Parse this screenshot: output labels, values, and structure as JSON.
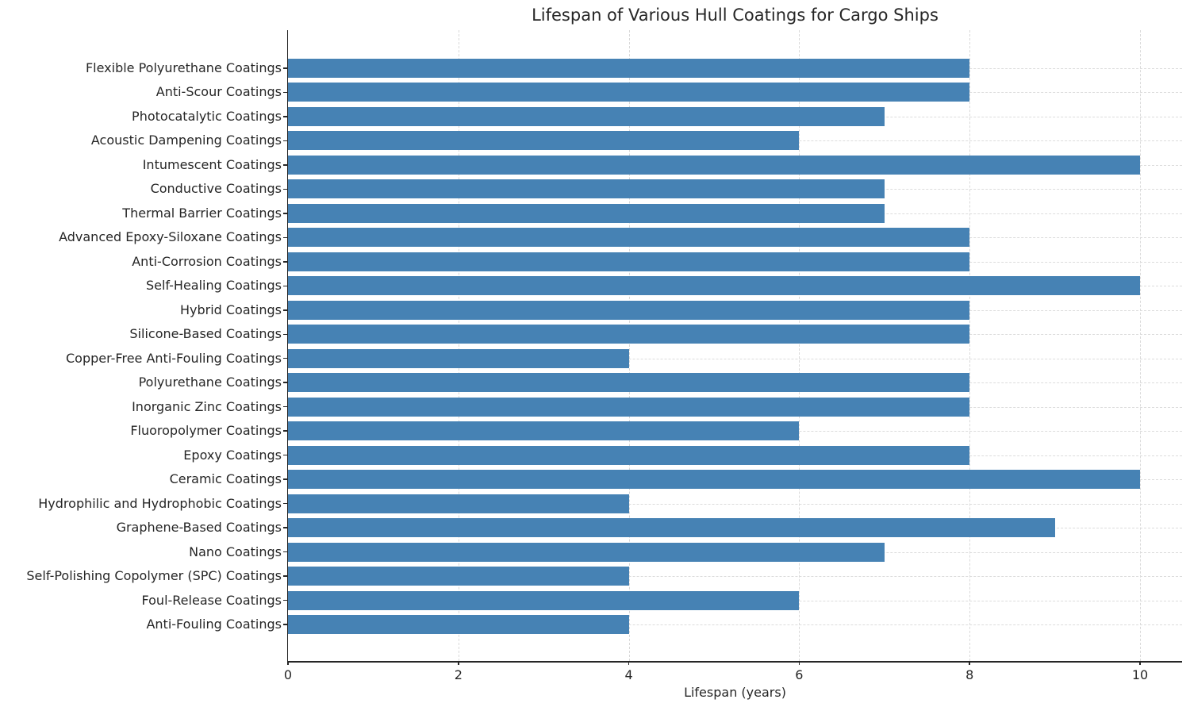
{
  "chart_data": {
    "type": "bar",
    "orientation": "horizontal",
    "title": "Lifespan of Various Hull Coatings for Cargo Ships",
    "xlabel": "Lifespan (years)",
    "ylabel": "",
    "categories": [
      "Flexible Polyurethane Coatings",
      "Anti-Scour Coatings",
      "Photocatalytic Coatings",
      "Acoustic Dampening Coatings",
      "Intumescent Coatings",
      "Conductive Coatings",
      "Thermal Barrier Coatings",
      "Advanced Epoxy-Siloxane Coatings",
      "Anti-Corrosion Coatings",
      "Self-Healing Coatings",
      "Hybrid Coatings",
      "Silicone-Based Coatings",
      "Copper-Free Anti-Fouling Coatings",
      "Polyurethane Coatings",
      "Inorganic Zinc Coatings",
      "Fluoropolymer Coatings",
      "Epoxy Coatings",
      "Ceramic Coatings",
      "Hydrophilic and Hydrophobic Coatings",
      "Graphene-Based Coatings",
      "Nano Coatings",
      "Self-Polishing Copolymer (SPC) Coatings",
      "Foul-Release Coatings",
      "Anti-Fouling Coatings"
    ],
    "values": [
      8,
      8,
      7,
      6,
      10,
      7,
      7,
      8,
      8,
      10,
      8,
      8,
      4,
      8,
      8,
      6,
      8,
      10,
      4,
      9,
      7,
      4,
      6,
      4
    ],
    "xticks": [
      0,
      2,
      4,
      6,
      8,
      10
    ],
    "xlim": [
      0,
      10.49
    ],
    "grid": true,
    "legend": false,
    "bar_color": "#4682B4",
    "background_color": "#ffffff",
    "text_color": "#262626",
    "grid_color": "#d9d9d9"
  }
}
